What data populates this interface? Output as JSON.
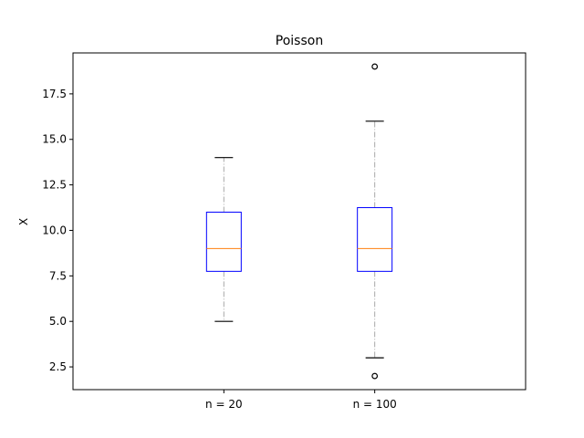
{
  "chart_data": {
    "type": "boxplot",
    "title": "Poisson",
    "xlabel": "",
    "ylabel": "X",
    "categories": [
      "n = 20",
      "n = 100"
    ],
    "ylim": [
      1.25,
      19.75
    ],
    "yticks": [
      2.5,
      5.0,
      7.5,
      10.0,
      12.5,
      15.0,
      17.5
    ],
    "ytick_labels": [
      "2.5",
      "5.0",
      "7.5",
      "10.0",
      "12.5",
      "15.0",
      "17.5"
    ],
    "boxes": [
      {
        "label": "n = 20",
        "whisker_low": 5,
        "q1": 7.75,
        "median": 9,
        "q3": 11,
        "whisker_high": 14,
        "outliers": []
      },
      {
        "label": "n = 100",
        "whisker_low": 3,
        "q1": 7.75,
        "median": 9,
        "q3": 11.25,
        "whisker_high": 16,
        "outliers": [
          2,
          19
        ]
      }
    ],
    "colors": {
      "box": "#0000ff",
      "median": "#ff7f0e",
      "whisker": "#a9a9a9",
      "cap": "#000000",
      "outlier": "#000000",
      "axes": "#000000"
    },
    "whisker_style": "dash-dot",
    "grid": false
  }
}
